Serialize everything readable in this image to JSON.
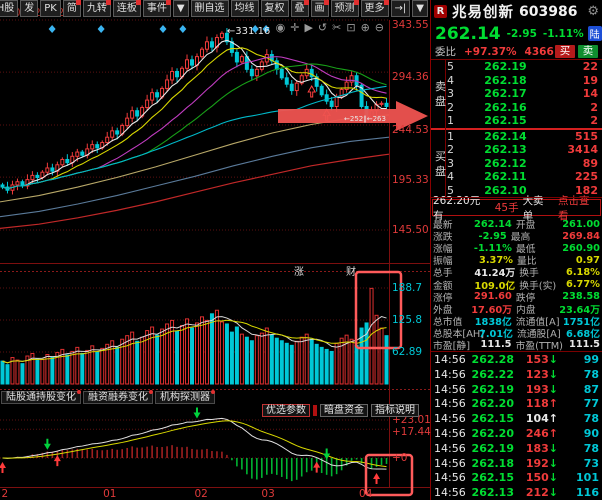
{
  "toolbar": {
    "items": [
      {
        "label": "H股",
        "badge": false
      },
      {
        "label": "发",
        "badge": false
      },
      {
        "label": "PK",
        "badge": false
      },
      {
        "label": "简",
        "badge": true
      },
      {
        "label": "九转",
        "badge": true
      },
      {
        "label": "连板",
        "badge": true
      },
      {
        "label": "事件",
        "badge": true
      },
      {
        "label": "▼",
        "badge": false
      },
      {
        "label": "删自选",
        "badge": false
      },
      {
        "label": "均线",
        "badge": false
      },
      {
        "label": "复权",
        "badge": false
      },
      {
        "label": "叠",
        "badge": true
      },
      {
        "label": "画",
        "badge": true
      },
      {
        "label": "预测",
        "badge": true
      },
      {
        "label": "更多",
        "badge": true
      },
      {
        "label": "→|",
        "badge": false
      },
      {
        "label": "▼",
        "badge": false
      }
    ],
    "tool_icons": [
      {
        "name": "eye-icon",
        "glyph": "◉"
      },
      {
        "name": "hand-icon",
        "glyph": "✛"
      },
      {
        "name": "play-icon",
        "glyph": "▶"
      },
      {
        "name": "undo-icon",
        "glyph": "↺"
      },
      {
        "name": "scissors-icon",
        "glyph": "✂"
      },
      {
        "name": "lock-icon",
        "glyph": "⊡"
      },
      {
        "name": "zoom-in-icon",
        "glyph": "⊕"
      },
      {
        "name": "zoom-out-icon",
        "glyph": "⊖"
      }
    ]
  },
  "chart": {
    "ma_label": "A200: 207.25↑",
    "y_axis_labels": [
      "343.55",
      "294.36",
      "244.53",
      "195.33",
      "145.50"
    ],
    "vol_axis_labels": [
      "188.7",
      "125.8",
      "62.89"
    ],
    "macd_axis_labels": [
      "+23.01",
      "+17.44",
      "+0"
    ],
    "x_axis_labels": [
      "2",
      "01",
      "02",
      "03",
      "04"
    ],
    "mid_labels": [
      "涨",
      "财"
    ],
    "bottom_tabs": [
      "陆股通持股变化",
      "融资融券变化",
      "机构探测器"
    ],
    "macd_tabs": [
      "优选参数",
      "暗盘资金",
      "指标说明"
    ],
    "peak_label": "←331.16",
    "arrow_tags": "←252∥←263"
  },
  "chart_data": {
    "type": "candlestick",
    "title": "兆易创新 603986 日K",
    "x_axis": {
      "labels": [
        "2",
        "01",
        "02",
        "03",
        "04"
      ],
      "fracs": [
        0.004,
        0.265,
        0.5,
        0.672,
        0.923
      ]
    },
    "y_axis_ticks": [
      343.55,
      294.36,
      244.53,
      195.33,
      145.5
    ],
    "volume_axis_ticks": [
      188.7,
      125.8,
      62.89
    ],
    "macd_axis_ticks": [
      23.01,
      17.44,
      0
    ],
    "closes": [
      186,
      183,
      188,
      191,
      187,
      193,
      197,
      195,
      200,
      204,
      201,
      207,
      212,
      209,
      215,
      219,
      216,
      222,
      226,
      223,
      228,
      233,
      239,
      236,
      244,
      251,
      258,
      253,
      261,
      268,
      275,
      271,
      279,
      287,
      295,
      290,
      298,
      306,
      301,
      309,
      316,
      323,
      318,
      327,
      331,
      323,
      313,
      304,
      309,
      297,
      291,
      297,
      304,
      311,
      305,
      297,
      289,
      283,
      277,
      284,
      291,
      297,
      290,
      281,
      273,
      267,
      262,
      271,
      278,
      285,
      291,
      282,
      262,
      251,
      258,
      264,
      265,
      262
    ],
    "volumes": [
      45,
      38,
      52,
      47,
      40,
      55,
      60,
      50,
      48,
      58,
      53,
      62,
      68,
      57,
      64,
      72,
      60,
      66,
      75,
      63,
      70,
      78,
      85,
      72,
      88,
      95,
      102,
      84,
      92,
      105,
      112,
      96,
      108,
      118,
      125,
      104,
      115,
      128,
      110,
      120,
      132,
      125,
      138,
      145,
      122,
      118,
      102,
      112,
      98,
      92,
      85,
      95,
      100,
      110,
      96,
      90,
      85,
      80,
      76,
      84,
      92,
      98,
      88,
      78,
      72,
      68,
      64,
      80,
      90,
      96,
      88,
      76,
      110,
      120,
      188,
      135,
      110,
      95
    ],
    "long_mas": {
      "ma120": [
        172,
        178,
        186,
        195,
        205,
        216,
        227,
        237,
        245,
        251,
        254
      ],
      "ma200": [
        158,
        163,
        170,
        178,
        187,
        196,
        206,
        215,
        223,
        229,
        233
      ],
      "ma250": [
        147,
        151,
        157,
        164,
        172,
        181,
        190,
        198,
        206,
        212,
        217
      ]
    },
    "event_diamond_fracs": [
      0.134,
      0.26,
      0.419,
      0.47,
      0.656,
      0.684
    ],
    "main_red_arrow_fracs": [
      0.795,
      0.836
    ],
    "macd_arrows": {
      "red_up": [
        0.003,
        0.141,
        0.802,
        0.964
      ],
      "green_down": [
        0.118,
        0.497,
        0.83
      ]
    },
    "annotations": {
      "peak_high": "331.16",
      "price_arrow_level": 262,
      "volume_box": true,
      "macd_box": true
    }
  },
  "quote": {
    "header": {
      "flag": "R",
      "name": "兆易创新",
      "code": "603986"
    },
    "price": {
      "last": "262.14",
      "change": "-2.95",
      "pct": "-1.11%",
      "market_badge": "陆"
    },
    "weibi": {
      "label": "委比",
      "value": "+97.37%",
      "weicha": "4366",
      "buy_btn": "买",
      "sell_btn": "卖"
    },
    "book": {
      "sell_label": "卖盘",
      "buy_label": "买盘",
      "sell": [
        [
          "5",
          "262.19",
          "22"
        ],
        [
          "4",
          "262.18",
          "19"
        ],
        [
          "3",
          "262.17",
          "14"
        ],
        [
          "2",
          "262.16",
          "2"
        ],
        [
          "1",
          "262.15",
          "2"
        ]
      ],
      "buy": [
        [
          "1",
          "262.14",
          "515"
        ],
        [
          "2",
          "262.13",
          "3414"
        ],
        [
          "3",
          "262.12",
          "89"
        ],
        [
          "4",
          "262.11",
          "225"
        ],
        [
          "5",
          "262.10",
          "182"
        ]
      ]
    },
    "banner": {
      "prefix": "262.20元有",
      "lots": "45手",
      "mid": "大卖单",
      "action": "点击查看"
    },
    "stats": [
      [
        "最新",
        "262.14",
        "g",
        "开盘",
        "261.00",
        "g"
      ],
      [
        "涨跌",
        "-2.95",
        "g",
        "最高",
        "269.84",
        "r"
      ],
      [
        "涨幅",
        "-1.11%",
        "g",
        "最低",
        "260.90",
        "g"
      ],
      [
        "振幅",
        "3.37%",
        "y",
        "量比",
        "0.97",
        "y"
      ],
      [
        "总手",
        "41.24万",
        "w",
        "换手",
        "6.18%",
        "y"
      ],
      [
        "金额",
        "109.0亿",
        "y",
        "换手(实)",
        "6.77%",
        "y"
      ],
      [
        "涨停",
        "291.60",
        "r",
        "跌停",
        "238.58",
        "g"
      ],
      [
        "外盘",
        "17.60万",
        "r",
        "内盘",
        "23.64万",
        "g"
      ],
      [
        "总市值",
        "1838亿",
        "c",
        "流通值[A]",
        "1751亿",
        "c"
      ],
      [
        "总股本[AH]",
        "7.01亿",
        "c",
        "流通股[A]",
        "6.68亿",
        "c"
      ],
      [
        "市盈[静]",
        "111.5",
        "w",
        "市盈(TTM)",
        "111.5",
        "w"
      ]
    ],
    "tape": [
      {
        "time": "14:56",
        "price": "262.28",
        "vol": "153",
        "dir": "down",
        "cnt": "99"
      },
      {
        "time": "14:56",
        "price": "262.22",
        "vol": "123",
        "dir": "down",
        "cnt": "78"
      },
      {
        "time": "14:56",
        "price": "262.19",
        "vol": "193",
        "dir": "down",
        "cnt": "87"
      },
      {
        "time": "14:56",
        "price": "262.20",
        "vol": "118",
        "dir": "up",
        "cnt": "77"
      },
      {
        "time": "14:56",
        "price": "262.15",
        "vol": "104",
        "dir": "flat",
        "cnt": "78"
      },
      {
        "time": "14:56",
        "price": "262.20",
        "vol": "246",
        "dir": "up",
        "cnt": "90"
      },
      {
        "time": "14:56",
        "price": "262.19",
        "vol": "183",
        "dir": "down",
        "cnt": "78"
      },
      {
        "time": "14:56",
        "price": "262.18",
        "vol": "192",
        "dir": "down",
        "cnt": "73"
      },
      {
        "time": "14:56",
        "price": "262.15",
        "vol": "150",
        "dir": "down",
        "cnt": "101"
      },
      {
        "time": "14:56",
        "price": "262.13",
        "vol": "212",
        "dir": "down",
        "cnt": "116"
      }
    ]
  }
}
